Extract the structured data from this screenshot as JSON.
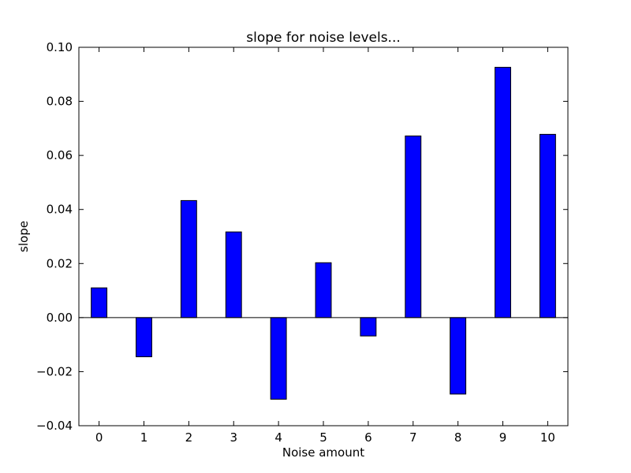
{
  "chart_data": {
    "type": "bar",
    "title": "slope for noise levels...",
    "xlabel": "Noise amount",
    "ylabel": "slope",
    "categories": [
      "0",
      "1",
      "2",
      "3",
      "4",
      "5",
      "6",
      "7",
      "8",
      "9",
      "10"
    ],
    "values": [
      0.011,
      -0.0145,
      0.0433,
      0.0317,
      -0.0302,
      0.0203,
      -0.0068,
      0.0672,
      -0.0283,
      0.0926,
      0.0678
    ],
    "ylim": [
      -0.04,
      0.1
    ],
    "xlim": [
      -0.45,
      10.45
    ],
    "yticks": [
      -0.04,
      -0.02,
      0.0,
      0.02,
      0.04,
      0.06,
      0.08,
      0.1
    ],
    "ytick_labels": [
      "−0.04",
      "−0.02",
      "0.00",
      "0.02",
      "0.04",
      "0.06",
      "0.08",
      "0.10"
    ],
    "bar_width": 0.35,
    "bar_color": "#0000ff",
    "edge_color": "#000000",
    "zero_line": true,
    "grid": false,
    "legend": "none"
  }
}
